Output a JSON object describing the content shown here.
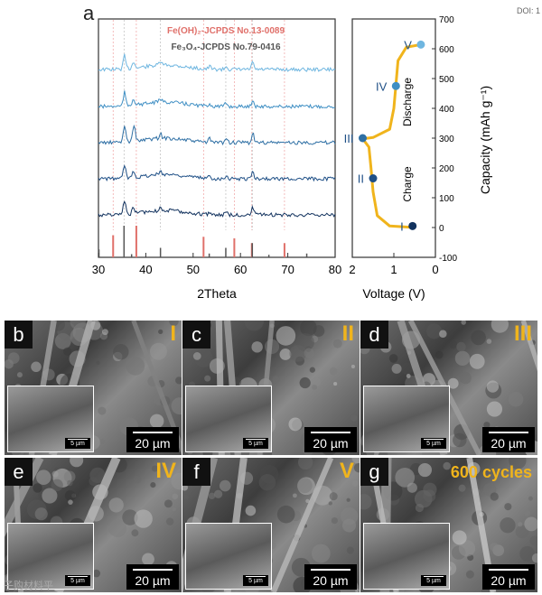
{
  "doi": "DOI: 1",
  "panel_a": {
    "letter": "a"
  },
  "chart_data": [
    {
      "type": "line",
      "name": "xrd",
      "xlabel": "2Theta",
      "ylabel": "",
      "xlim": [
        30,
        80
      ],
      "x_ticks": [
        "30",
        "40",
        "50",
        "60",
        "70",
        "80"
      ],
      "legend": [
        {
          "text": "Fe(OH)₂-JCPDS No.13-0089",
          "color": "#e0706a"
        },
        {
          "text": "Fe₃O₄-JCPDS No.79-0416",
          "color": "#555555"
        }
      ],
      "series_colors": [
        "#6fb6e0",
        "#3f8fc4",
        "#2e6fa4",
        "#1e4f86",
        "#12325e"
      ],
      "peak_positions": [
        35.5,
        37.4,
        43.1,
        53.5,
        57.0,
        62.6
      ],
      "ref_lines": [
        {
          "name": "Fe(OH)₂",
          "color": "#e0706a",
          "positions": [
            33.1,
            38.0,
            52.2,
            58.7,
            62.4,
            69.3
          ],
          "heights": [
            0.7,
            1.0,
            0.65,
            0.6,
            0.45,
            0.45
          ]
        },
        {
          "name": "Fe₃O₄",
          "color": "#555555",
          "positions": [
            30.1,
            35.4,
            37.0,
            43.1,
            53.4,
            56.9,
            62.5,
            66.0,
            74.0
          ],
          "heights": [
            0.25,
            1.0,
            0.1,
            0.3,
            0.12,
            0.3,
            0.45,
            0.08,
            0.12
          ]
        }
      ]
    },
    {
      "type": "line",
      "name": "voltage_capacity",
      "xlabel": "Voltage (V)",
      "ylabel": "Capacity (mAh g⁻¹)",
      "xlim": [
        2,
        0
      ],
      "ylim": [
        -100,
        700
      ],
      "x_ticks": [
        "2",
        "1",
        "0"
      ],
      "y_ticks": [
        "-100",
        "0",
        "100",
        "200",
        "300",
        "400",
        "500",
        "600",
        "700"
      ],
      "curve": {
        "color": "#f0b41c",
        "points": [
          [
            0.5,
            0
          ],
          [
            1.1,
            5
          ],
          [
            1.4,
            40
          ],
          [
            1.5,
            120
          ],
          [
            1.55,
            200
          ],
          [
            1.6,
            270
          ],
          [
            1.75,
            298
          ],
          [
            1.5,
            302
          ],
          [
            1.1,
            330
          ],
          [
            1.0,
            400
          ],
          [
            0.95,
            480
          ],
          [
            0.9,
            560
          ],
          [
            0.7,
            605
          ],
          [
            0.35,
            614
          ]
        ]
      },
      "state_points": [
        {
          "label": "I",
          "v": 0.55,
          "c": 5,
          "color": "#12325e"
        },
        {
          "label": "II",
          "v": 1.5,
          "c": 165,
          "color": "#1e4f86"
        },
        {
          "label": "III",
          "v": 1.75,
          "c": 300,
          "color": "#2e6fa4"
        },
        {
          "label": "IV",
          "v": 0.95,
          "c": 475,
          "color": "#3f8fc4"
        },
        {
          "label": "V",
          "v": 0.35,
          "c": 614,
          "color": "#6fb6e0"
        }
      ],
      "annotations": [
        "Charge",
        "Discharge"
      ]
    }
  ],
  "sem_panels": [
    {
      "letter": "b",
      "tag": "I",
      "scale": "20 µm",
      "inset_scale": "5 µm"
    },
    {
      "letter": "c",
      "tag": "II",
      "scale": "20 µm",
      "inset_scale": "5 µm"
    },
    {
      "letter": "d",
      "tag": "III",
      "scale": "20 µm",
      "inset_scale": "5 µm"
    },
    {
      "letter": "e",
      "tag": "IV",
      "scale": "20 µm",
      "inset_scale": "5 µm"
    },
    {
      "letter": "f",
      "tag": "V",
      "scale": "20 µm",
      "inset_scale": "5 µm"
    },
    {
      "letter": "g",
      "tag": "600 cycles",
      "scale": "20 µm",
      "inset_scale": "5 µm"
    }
  ],
  "watermark": "子购材料平"
}
